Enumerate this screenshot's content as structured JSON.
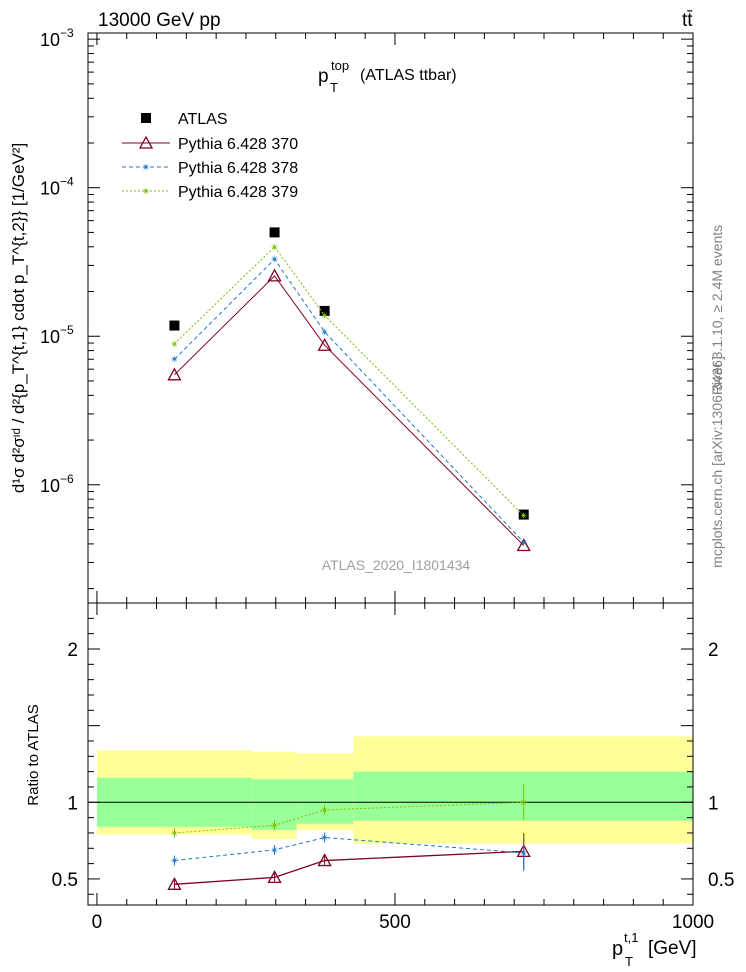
{
  "header": {
    "energy_label": "13000 GeV pp",
    "process_label": "tt̄"
  },
  "side_labels": {
    "rivet": "Rivet 3.1.10, ≥ 2.4M events",
    "mcplots": "mcplots.cern.ch [arXiv:1306.3436]"
  },
  "colors": {
    "data": "#000000",
    "pythia_370": "#7f0020",
    "pythia_378": "#1f78c8",
    "pythia_379": "#7fbf00",
    "band_inner": "#99ff99",
    "band_outer": "#ffff99"
  },
  "chart_data": [
    {
      "type": "scatter",
      "title_main": "p",
      "title_sup": "top",
      "title_sub": "T",
      "title_rest": "(ATLAS ttbar)",
      "analysis_label": "ATLAS_2020_I1801434",
      "ylabel": "d¹σ d²σᶦᵈ / d²{p_T^{t,1} cdot p_T^{t,2}} [1/GeV²]",
      "yscale": "log",
      "ylim": [
        1.6e-07,
        0.0011
      ],
      "y_ticks": [
        {
          "value": 1e-06,
          "base": "10",
          "exp": "−6"
        },
        {
          "value": 1e-05,
          "base": "10",
          "exp": "−5"
        },
        {
          "value": 0.0001,
          "base": "10",
          "exp": "−4"
        },
        {
          "value": 0.001,
          "base": "10",
          "exp": "−3"
        }
      ],
      "xlim": [
        -15,
        1000
      ],
      "x": [
        130,
        298,
        382,
        716
      ],
      "series": [
        {
          "name": "ATLAS",
          "marker": "square",
          "values": [
            1.18e-05,
            5e-05,
            1.48e-05,
            6.3e-07
          ]
        },
        {
          "name": "Pythia 6.428 370",
          "marker": "triangle",
          "dash": "solid",
          "values": [
            5.5e-06,
            2.55e-05,
            8.7e-06,
            3.9e-07
          ]
        },
        {
          "name": "Pythia 6.428 378",
          "marker": "star",
          "dash": "dashed",
          "values": [
            7e-06,
            3.3e-05,
            1.07e-05,
            4.1e-07
          ]
        },
        {
          "name": "Pythia 6.428 379",
          "marker": "star",
          "dash": "dotted",
          "values": [
            8.9e-06,
            4e-05,
            1.38e-05,
            6.2e-07
          ]
        }
      ]
    },
    {
      "type": "line",
      "ylabel": "Ratio to ATLAS",
      "xlabel_main": "p",
      "xlabel_sup": "t,1",
      "xlabel_sub": "T",
      "xlabel_unit": "[GeV]",
      "ylim": [
        0.33,
        2.3
      ],
      "xlim": [
        -15,
        1000
      ],
      "x_ticks": [
        0,
        500,
        1000
      ],
      "y_ticks": [
        0.5,
        1,
        2
      ],
      "reference": 1,
      "bands": [
        {
          "x0": 0,
          "x1": 260,
          "inner": [
            0.84,
            1.16
          ],
          "outer": [
            0.79,
            1.34
          ]
        },
        {
          "x0": 260,
          "x1": 335,
          "inner": [
            0.82,
            1.15
          ],
          "outer": [
            0.76,
            1.33
          ]
        },
        {
          "x0": 335,
          "x1": 430,
          "inner": [
            0.86,
            1.15
          ],
          "outer": [
            0.82,
            1.32
          ]
        },
        {
          "x0": 430,
          "x1": 1000,
          "inner": [
            0.88,
            1.2
          ],
          "outer": [
            0.73,
            1.43
          ]
        }
      ],
      "x": [
        130,
        298,
        382,
        716
      ],
      "series": [
        {
          "name": "Pythia 6.428 370",
          "values": [
            0.465,
            0.51,
            0.62,
            0.68
          ]
        },
        {
          "name": "Pythia 6.428 378",
          "values": [
            0.62,
            0.69,
            0.77,
            0.67
          ]
        },
        {
          "name": "Pythia 6.428 379",
          "values": [
            0.8,
            0.85,
            0.95,
            1.0
          ]
        }
      ]
    }
  ]
}
